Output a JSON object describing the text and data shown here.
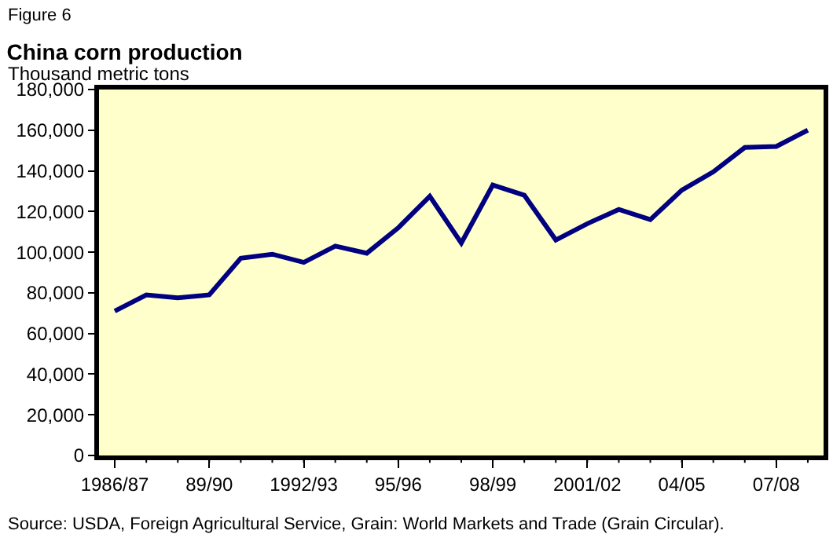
{
  "chart_data": {
    "type": "line",
    "title": "China corn production",
    "ylabel": "Thousand metric tons",
    "annotations": [
      "Figure 6",
      "Source: USDA, Foreign Agricultural Service, Grain: World Markets and Trade (Grain Circular)."
    ],
    "categories": [
      "1986/87",
      null,
      null,
      "89/90",
      null,
      null,
      "1992/93",
      null,
      null,
      "95/96",
      null,
      null,
      "98/99",
      null,
      null,
      "2001/02",
      null,
      null,
      "04/05",
      null,
      null,
      "07/08",
      null
    ],
    "series": [
      {
        "color": "#000080",
        "values": [
          71000,
          79000,
          77500,
          79000,
          97000,
          99000,
          95000,
          103000,
          99500,
          112000,
          127500,
          104500,
          133000,
          128000,
          106000,
          114000,
          121000,
          116000,
          130500,
          139500,
          151500,
          152000,
          160000
        ]
      }
    ],
    "ylim": [
      0,
      180000
    ],
    "yticks": [
      {
        "value": 0,
        "label": "0"
      },
      {
        "value": 20000,
        "label": "20,000"
      },
      {
        "value": 40000,
        "label": "40,000"
      },
      {
        "value": 60000,
        "label": "60,000"
      },
      {
        "value": 80000,
        "label": "80,000"
      },
      {
        "value": 100000,
        "label": "100,000"
      },
      {
        "value": 120000,
        "label": "120,000"
      },
      {
        "value": 140000,
        "label": "140,000"
      },
      {
        "value": 160000,
        "label": "160,000"
      },
      {
        "value": 180000,
        "label": "180,000"
      }
    ],
    "grid": false,
    "marker": "none",
    "line_style": "solid"
  }
}
